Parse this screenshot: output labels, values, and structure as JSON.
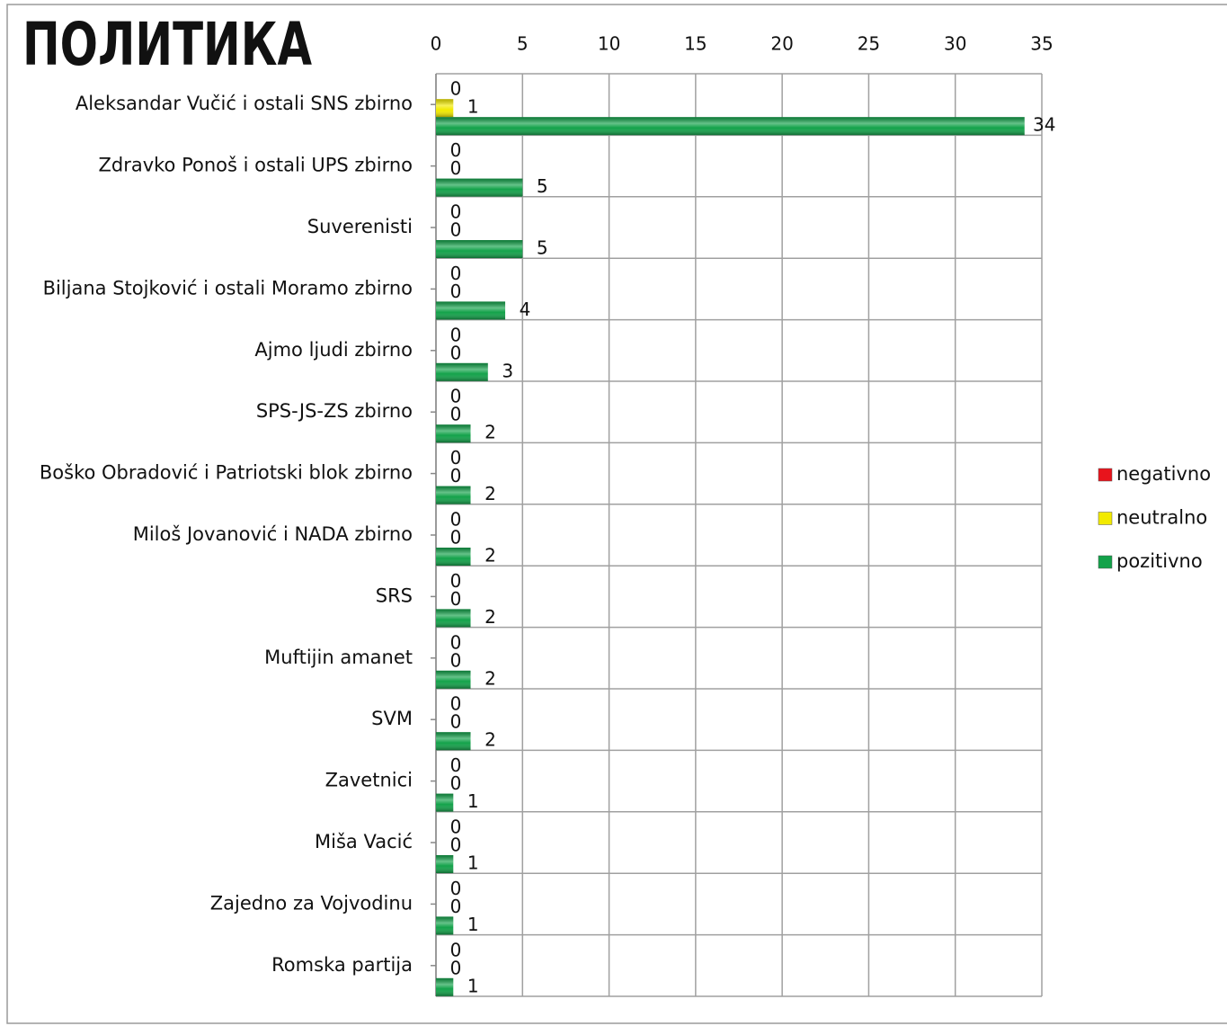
{
  "chart_data": {
    "type": "bar",
    "orientation": "horizontal",
    "title": "ПОЛИТИКА",
    "categories": [
      "Aleksandar Vučić i ostali SNS zbirno",
      "Zdravko Ponoš i ostali UPS zbirno",
      "Suverenisti",
      "Biljana Stojković i ostali Moramo zbirno",
      "Ajmo ljudi zbirno",
      "SPS-JS-ZS zbirno",
      "Boško Obradović i Patriotski blok zbirno",
      "Miloš Jovanović i NADA zbirno",
      "SRS",
      "Muftijin amanet",
      "SVM",
      "Zavetnici",
      "Miša Vacić",
      "Zajedno za Vojvodinu",
      "Romska partija"
    ],
    "series": [
      {
        "name": "negativno",
        "color": "#e8141c",
        "values": [
          0,
          0,
          0,
          0,
          0,
          0,
          0,
          0,
          0,
          0,
          0,
          0,
          0,
          0,
          0
        ]
      },
      {
        "name": "neutralno",
        "color": "#f2ea00",
        "values": [
          1,
          0,
          0,
          0,
          0,
          0,
          0,
          0,
          0,
          0,
          0,
          0,
          0,
          0,
          0
        ]
      },
      {
        "name": "pozitivno",
        "color": "#13a24a",
        "values": [
          34,
          5,
          5,
          4,
          3,
          2,
          2,
          2,
          2,
          2,
          2,
          1,
          1,
          1,
          1
        ]
      }
    ],
    "xlim": [
      0,
      35
    ],
    "xticks": [
      0,
      5,
      10,
      15,
      20,
      25,
      30,
      35
    ],
    "grid": true,
    "legend": "right"
  }
}
